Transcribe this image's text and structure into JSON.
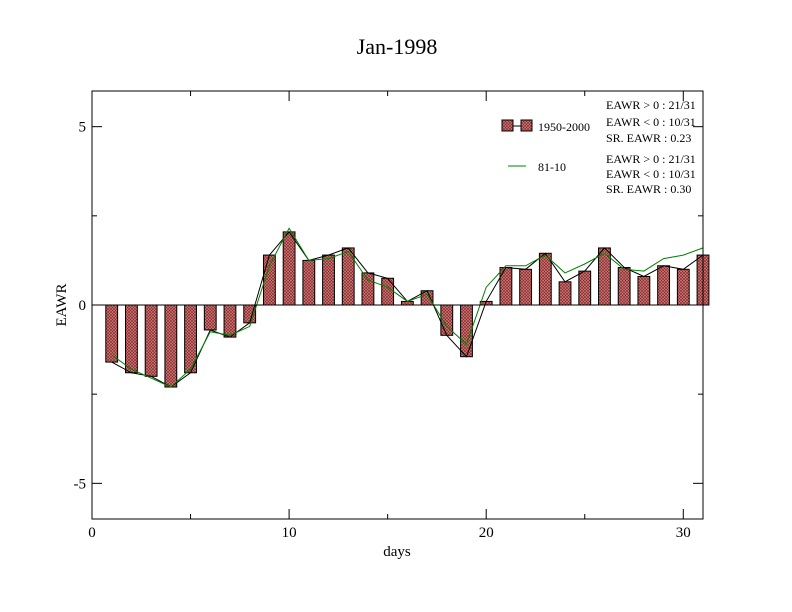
{
  "chart_data": {
    "type": "bar",
    "title": "Jan-1998",
    "xlabel": "days",
    "ylabel": "EAWR",
    "xlim": [
      0,
      31
    ],
    "ylim": [
      -6,
      6
    ],
    "xticks": [
      0,
      10,
      20,
      30
    ],
    "yticks": [
      -5,
      0,
      5
    ],
    "xtick_labels": [
      "0",
      "10",
      "20",
      "30"
    ],
    "ytick_labels": [
      "-5",
      "0",
      "5"
    ],
    "grid": false,
    "legend_position": "top-right",
    "x": [
      1,
      2,
      3,
      4,
      5,
      6,
      7,
      8,
      9,
      10,
      11,
      12,
      13,
      14,
      15,
      16,
      17,
      18,
      19,
      20,
      21,
      22,
      23,
      24,
      25,
      26,
      27,
      28,
      29,
      30,
      31
    ],
    "series": [
      {
        "name": "1950-2000",
        "style": "bar-and-line",
        "bar_color": "#e07070",
        "line_color": "#000000",
        "values": [
          -1.6,
          -1.9,
          -2.0,
          -2.3,
          -1.9,
          -0.7,
          -0.9,
          -0.5,
          1.4,
          2.05,
          1.25,
          1.4,
          1.6,
          0.9,
          0.75,
          0.1,
          0.4,
          -0.85,
          -1.45,
          0.1,
          1.05,
          1.0,
          1.45,
          0.65,
          0.95,
          1.6,
          1.05,
          0.8,
          1.1,
          1.0,
          1.4
        ]
      },
      {
        "name": "81-10",
        "style": "line",
        "line_color": "#008000",
        "values": [
          -1.4,
          -1.8,
          -2.05,
          -2.3,
          -1.8,
          -0.75,
          -0.85,
          -0.6,
          1.1,
          2.15,
          1.25,
          1.3,
          1.5,
          0.7,
          0.5,
          0.1,
          0.3,
          -0.6,
          -1.1,
          0.5,
          1.1,
          1.1,
          1.4,
          0.9,
          1.15,
          1.45,
          1.0,
          0.95,
          1.3,
          1.4,
          1.6
        ]
      }
    ],
    "stats": [
      [
        "EAWR > 0 : 21/31",
        "EAWR < 0 : 10/31",
        "SR. EAWR :  0.23"
      ],
      [
        "EAWR > 0 : 21/31",
        "EAWR < 0 : 10/31",
        "SR. EAWR :  0.30"
      ]
    ]
  }
}
